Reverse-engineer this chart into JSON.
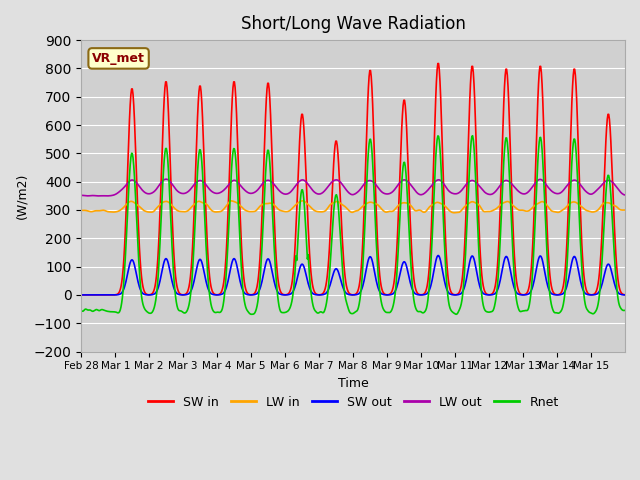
{
  "title": "Short/Long Wave Radiation",
  "xlabel": "Time",
  "ylabel": "(W/m2)",
  "ylim": [
    -200,
    900
  ],
  "yticks": [
    -200,
    -100,
    0,
    100,
    200,
    300,
    400,
    500,
    600,
    700,
    800,
    900
  ],
  "annotation": "VR_met",
  "legend": [
    "SW in",
    "LW in",
    "SW out",
    "LW out",
    "Rnet"
  ],
  "legend_colors": [
    "#ff0000",
    "#ffa500",
    "#0000ff",
    "#aa00aa",
    "#00cc00"
  ],
  "bg_color": "#e0e0e0",
  "plot_bg_color": "#d0d0d0",
  "tick_labels": [
    "Feb 28",
    "Mar 1",
    "Mar 2",
    "Mar 3",
    "Mar 4",
    "Mar 5",
    "Mar 6",
    "Mar 7",
    "Mar 8",
    "Mar 9",
    "Mar 10",
    "Mar 11",
    "Mar 12",
    "Mar 13",
    "Mar 14",
    "Mar 15"
  ],
  "sw_peaks": [
    0,
    730,
    755,
    740,
    755,
    750,
    640,
    545,
    795,
    690,
    820,
    810,
    800,
    810,
    800,
    640
  ]
}
